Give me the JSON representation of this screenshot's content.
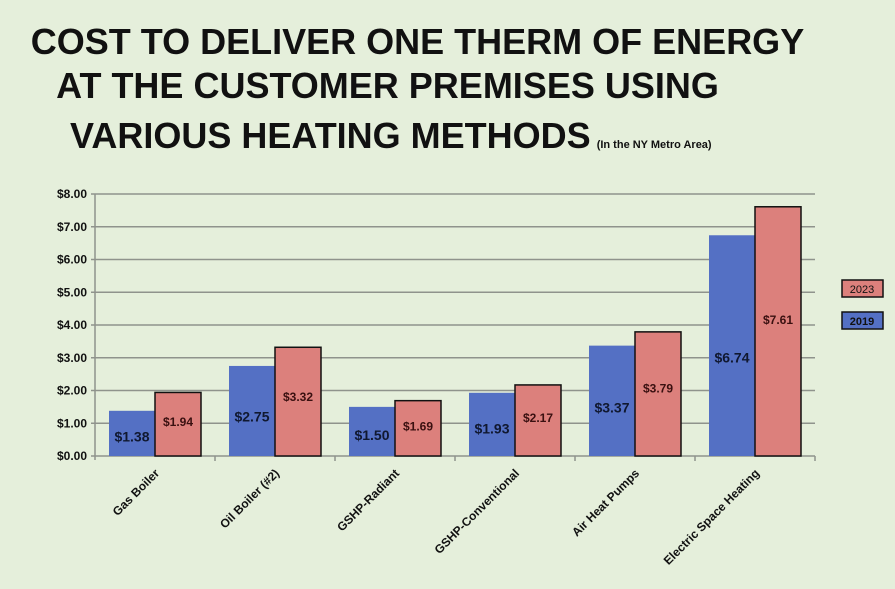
{
  "chart_data": {
    "type": "bar",
    "title_lines": [
      "COST TO DELIVER ONE THERM OF ENERGY",
      "AT THE CUSTOMER PREMISES USING",
      "VARIOUS HEATING METHODS"
    ],
    "subtitle": "(In the NY Metro Area)",
    "categories": [
      "Gas Boiler",
      "Oil Boiler (#2)",
      "GSHP-Radiant",
      "GSHP-Conventional",
      "Air Heat Pumps",
      "Electric Space Heating"
    ],
    "series": [
      {
        "name": "2019",
        "color": "#5470c4",
        "values": [
          1.38,
          2.75,
          1.5,
          1.93,
          3.37,
          6.74
        ],
        "labels": [
          "$1.38",
          "$2.75",
          "$1.50",
          "$1.93",
          "$3.37",
          "$6.74"
        ]
      },
      {
        "name": "2023",
        "color": "#dc807c",
        "values": [
          1.94,
          3.32,
          1.69,
          2.17,
          3.79,
          7.61
        ],
        "labels": [
          "$1.94",
          "$3.32",
          "$1.69",
          "$2.17",
          "$3.79",
          "$7.61"
        ]
      }
    ],
    "yticks": [
      "$0.00",
      "$1.00",
      "$2.00",
      "$3.00",
      "$4.00",
      "$5.00",
      "$6.00",
      "$7.00",
      "$8.00"
    ],
    "ylim": [
      0,
      8
    ],
    "xlabel": "",
    "ylabel": "",
    "grid": true,
    "legend": [
      "2023",
      "2019"
    ],
    "legend_placement": "right"
  }
}
